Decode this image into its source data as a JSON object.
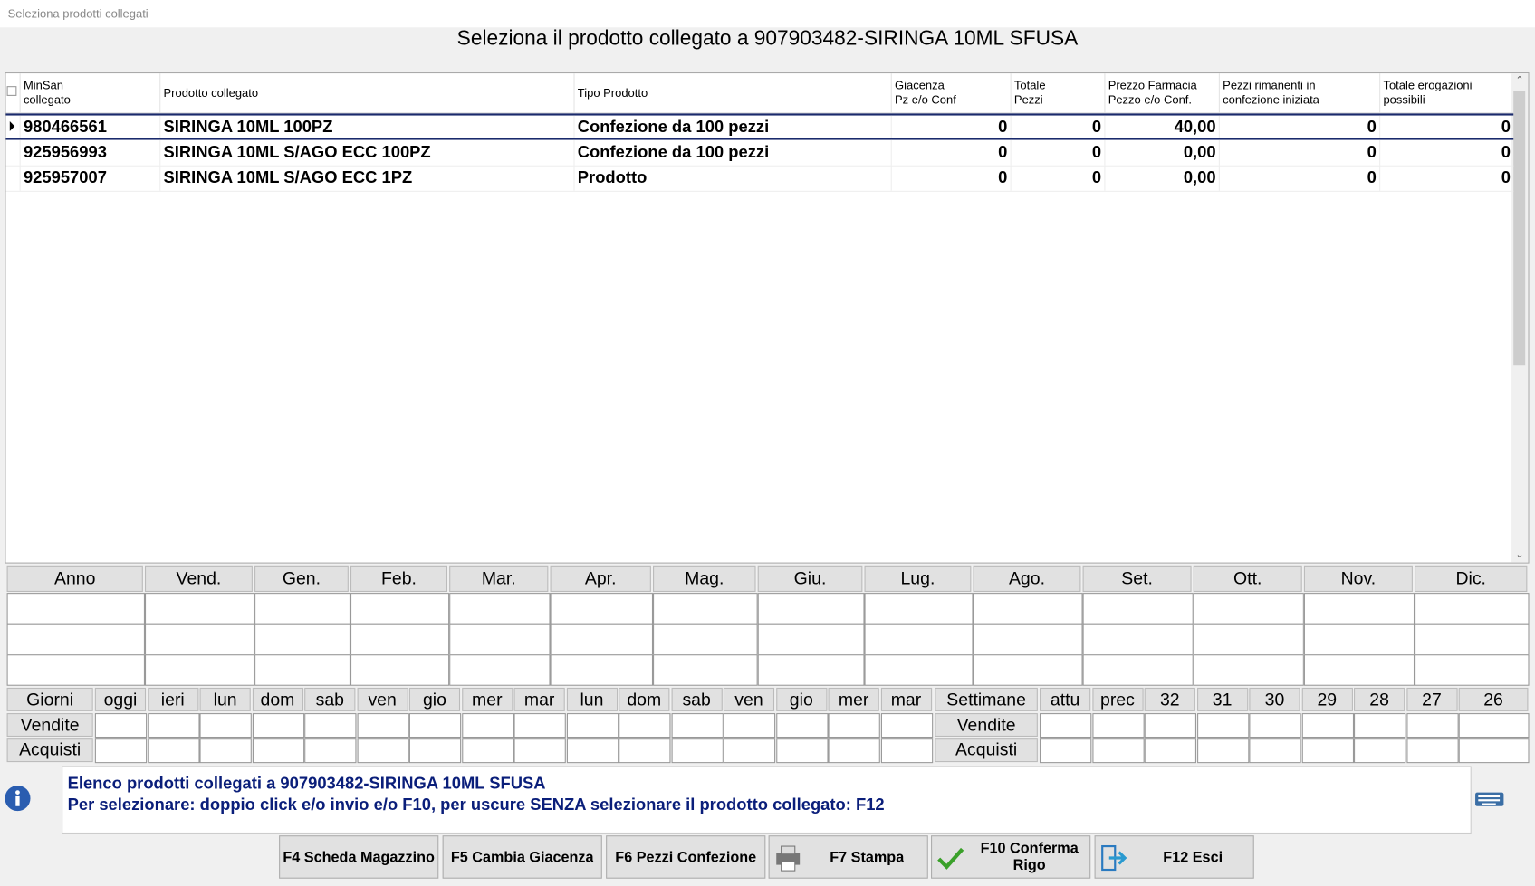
{
  "window_title": "Seleziona prodotti collegati",
  "heading": "Seleziona il prodotto collegato a 907903482-SIRINGA 10ML SFUSA",
  "table": {
    "columns": [
      [
        "MinSan",
        "collegato"
      ],
      [
        "Prodotto collegato"
      ],
      [
        "Tipo Prodotto"
      ],
      [
        "Giacenza",
        "Pz e/o Conf"
      ],
      [
        "Totale",
        "Pezzi"
      ],
      [
        "Prezzo Farmacia",
        "Pezzo e/o Conf."
      ],
      [
        "Pezzi rimanenti in",
        "confezione iniziata"
      ],
      [
        "Totale erogazioni",
        "possibili"
      ]
    ],
    "rows": [
      [
        "980466561",
        "SIRINGA 10ML 100PZ",
        "Confezione da 100 pezzi",
        "0",
        "0",
        "40,00",
        "0",
        "0"
      ],
      [
        "925956993",
        "SIRINGA 10ML S/AGO ECC 100PZ",
        "Confezione da 100 pezzi",
        "0",
        "0",
        "0,00",
        "0",
        "0"
      ],
      [
        "925957007",
        "SIRINGA 10ML S/AGO ECC 1PZ",
        "Prodotto",
        "0",
        "0",
        "0,00",
        "0",
        "0"
      ]
    ]
  },
  "months": [
    "Anno",
    "Vend.",
    "Gen.",
    "Feb.",
    "Mar.",
    "Apr.",
    "Mag.",
    "Giu.",
    "Lug.",
    "Ago.",
    "Set.",
    "Ott.",
    "Nov.",
    "Dic."
  ],
  "days": {
    "header": "Giorni",
    "columns": [
      "oggi",
      "ieri",
      "lun",
      "dom",
      "sab",
      "ven",
      "gio",
      "mer",
      "mar",
      "lun",
      "dom",
      "sab",
      "ven",
      "gio",
      "mer",
      "mar"
    ],
    "rows": [
      "Vendite",
      "Acquisti"
    ]
  },
  "weeks": {
    "header": "Settimane",
    "columns": [
      "attu",
      "prec",
      "32",
      "31",
      "30",
      "29",
      "28",
      "27",
      "26"
    ],
    "rows": [
      "Vendite",
      "Acquisti"
    ]
  },
  "message": [
    "Elenco prodotti collegati a 907903482-SIRINGA 10ML SFUSA",
    "Per selezionare: doppio click e/o invio e/o F10, per uscure SENZA selezionare il prodotto collegato: F12"
  ],
  "buttons": [
    "F4 Scheda Magazzino",
    "F5 Cambia Giacenza",
    "F6 Pezzi Confezione",
    "F7 Stampa",
    "F10 Conferma Rigo",
    "F12 Esci"
  ]
}
